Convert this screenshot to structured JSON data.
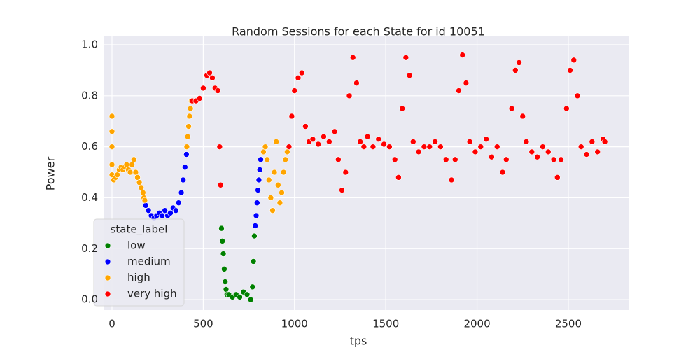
{
  "chart_data": {
    "type": "scatter",
    "title": "Random Sessions for each State for id 10051",
    "xlabel": "tps",
    "ylabel": "Power",
    "legend_title": "state_label",
    "legend_loc": "lower left",
    "grid": true,
    "xlim": [
      -46,
      2830
    ],
    "ylim": [
      -0.041,
      1.033
    ],
    "xticks": [
      0,
      500,
      1000,
      1500,
      2000,
      2500
    ],
    "yticks": [
      {
        "value": 0,
        "label": "0.0"
      },
      0.2,
      0.4,
      0.6,
      0.8,
      {
        "value": 1,
        "label": "1.0"
      }
    ],
    "series": [
      {
        "name": "low",
        "color": "#008000",
        "x": [
          600,
          605,
          610,
          615,
          620,
          625,
          630,
          640,
          660,
          680,
          700,
          720,
          740,
          760,
          770,
          775,
          780
        ],
        "values": [
          0.28,
          0.23,
          0.18,
          0.12,
          0.07,
          0.04,
          0.02,
          0.02,
          0.01,
          0.02,
          0.01,
          0.03,
          0.02,
          0.0,
          0.05,
          0.15,
          0.25
        ]
      },
      {
        "name": "medium",
        "color": "#0000ff",
        "x": [
          185,
          200,
          215,
          230,
          245,
          260,
          275,
          290,
          305,
          320,
          335,
          350,
          365,
          380,
          390,
          400,
          408,
          785,
          790,
          795,
          800,
          805,
          810,
          815
        ],
        "values": [
          0.37,
          0.35,
          0.33,
          0.32,
          0.33,
          0.34,
          0.33,
          0.35,
          0.33,
          0.34,
          0.36,
          0.35,
          0.38,
          0.42,
          0.47,
          0.52,
          0.57,
          0.29,
          0.33,
          0.38,
          0.43,
          0.47,
          0.51,
          0.55
        ]
      },
      {
        "name": "high",
        "color": "#ffa500",
        "x": [
          0,
          0,
          0,
          0,
          0,
          10,
          20,
          30,
          40,
          50,
          60,
          70,
          80,
          90,
          100,
          110,
          120,
          130,
          140,
          150,
          160,
          170,
          175,
          180,
          410,
          415,
          420,
          425,
          430,
          435,
          830,
          840,
          850,
          860,
          870,
          880,
          890,
          900,
          910,
          920,
          930,
          940,
          950,
          960
        ],
        "values": [
          0.72,
          0.66,
          0.6,
          0.53,
          0.49,
          0.47,
          0.48,
          0.49,
          0.51,
          0.52,
          0.51,
          0.52,
          0.53,
          0.51,
          0.5,
          0.53,
          0.55,
          0.5,
          0.48,
          0.46,
          0.44,
          0.42,
          0.4,
          0.39,
          0.6,
          0.64,
          0.68,
          0.72,
          0.75,
          0.78,
          0.58,
          0.6,
          0.55,
          0.47,
          0.4,
          0.35,
          0.5,
          0.62,
          0.45,
          0.38,
          0.42,
          0.5,
          0.55,
          0.58
        ]
      },
      {
        "name": "very high",
        "color": "#ff0000",
        "x": [
          440,
          460,
          480,
          500,
          520,
          535,
          550,
          565,
          580,
          590,
          595,
          970,
          985,
          1000,
          1020,
          1040,
          1060,
          1080,
          1100,
          1130,
          1160,
          1190,
          1220,
          1240,
          1260,
          1280,
          1300,
          1320,
          1340,
          1360,
          1380,
          1400,
          1430,
          1460,
          1490,
          1520,
          1550,
          1570,
          1590,
          1610,
          1630,
          1650,
          1680,
          1710,
          1740,
          1770,
          1800,
          1830,
          1860,
          1880,
          1900,
          1920,
          1940,
          1960,
          1990,
          2020,
          2050,
          2080,
          2110,
          2140,
          2160,
          2190,
          2210,
          2230,
          2250,
          2270,
          2300,
          2330,
          2360,
          2390,
          2420,
          2440,
          2460,
          2490,
          2510,
          2530,
          2550,
          2570,
          2600,
          2630,
          2660,
          2690,
          2700
        ],
        "values": [
          0.78,
          0.78,
          0.79,
          0.83,
          0.88,
          0.89,
          0.87,
          0.83,
          0.82,
          0.6,
          0.45,
          0.6,
          0.72,
          0.82,
          0.87,
          0.89,
          0.68,
          0.62,
          0.63,
          0.61,
          0.64,
          0.62,
          0.66,
          0.55,
          0.43,
          0.5,
          0.8,
          0.95,
          0.85,
          0.62,
          0.6,
          0.64,
          0.6,
          0.63,
          0.61,
          0.6,
          0.55,
          0.48,
          0.75,
          0.95,
          0.88,
          0.62,
          0.58,
          0.6,
          0.6,
          0.62,
          0.6,
          0.55,
          0.47,
          0.55,
          0.82,
          0.96,
          0.85,
          0.62,
          0.58,
          0.6,
          0.63,
          0.56,
          0.6,
          0.5,
          0.55,
          0.75,
          0.9,
          0.93,
          0.72,
          0.62,
          0.58,
          0.56,
          0.6,
          0.58,
          0.55,
          0.48,
          0.55,
          0.75,
          0.9,
          0.94,
          0.8,
          0.6,
          0.57,
          0.62,
          0.58,
          0.63,
          0.62
        ]
      }
    ]
  }
}
